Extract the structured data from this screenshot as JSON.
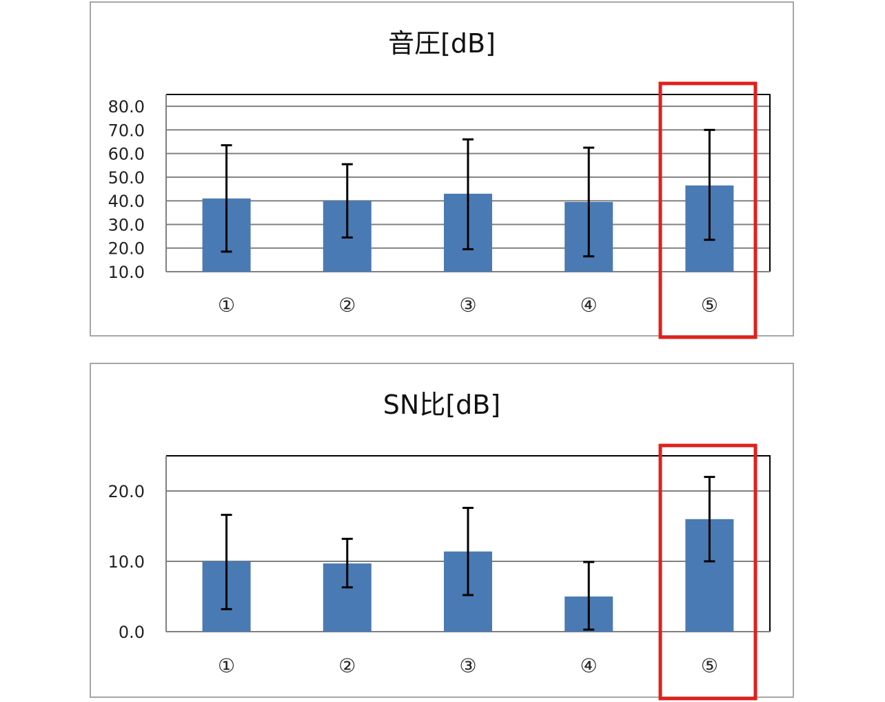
{
  "colors": {
    "bar": "#4a7ab4",
    "highlight": "#e0201b",
    "grid": "#808080",
    "frame": "#a6a6a6",
    "errorbar": "#000000"
  },
  "chart_data": [
    {
      "type": "bar",
      "title": "音圧[dB]",
      "categories": [
        "①",
        "②",
        "③",
        "④",
        "⑤"
      ],
      "values": [
        41.0,
        40.0,
        43.0,
        39.5,
        46.5
      ],
      "error_low": [
        18.5,
        24.5,
        19.5,
        16.5,
        23.5
      ],
      "error_high": [
        63.5,
        55.5,
        66.0,
        62.5,
        70.0
      ],
      "ylim": [
        10,
        85
      ],
      "yticks": [
        10,
        20,
        30,
        40,
        50,
        60,
        70,
        80
      ],
      "yticklabels": [
        "10.0",
        "20.0",
        "30.0",
        "40.0",
        "50.0",
        "60.0",
        "70.0",
        "80.0"
      ],
      "grid": true,
      "highlighted_category": "⑤"
    },
    {
      "type": "bar",
      "title": "SN比[dB]",
      "categories": [
        "①",
        "②",
        "③",
        "④",
        "⑤"
      ],
      "values": [
        10.0,
        9.7,
        11.4,
        5.0,
        16.0
      ],
      "error_low": [
        3.2,
        6.3,
        5.2,
        0.3,
        10.0
      ],
      "error_high": [
        16.6,
        13.2,
        17.6,
        9.9,
        22.0
      ],
      "ylim": [
        0,
        25
      ],
      "yticks": [
        0,
        10,
        20
      ],
      "yticklabels": [
        "0.0",
        "10.0",
        "20.0"
      ],
      "grid": true,
      "highlighted_category": "⑤"
    }
  ]
}
